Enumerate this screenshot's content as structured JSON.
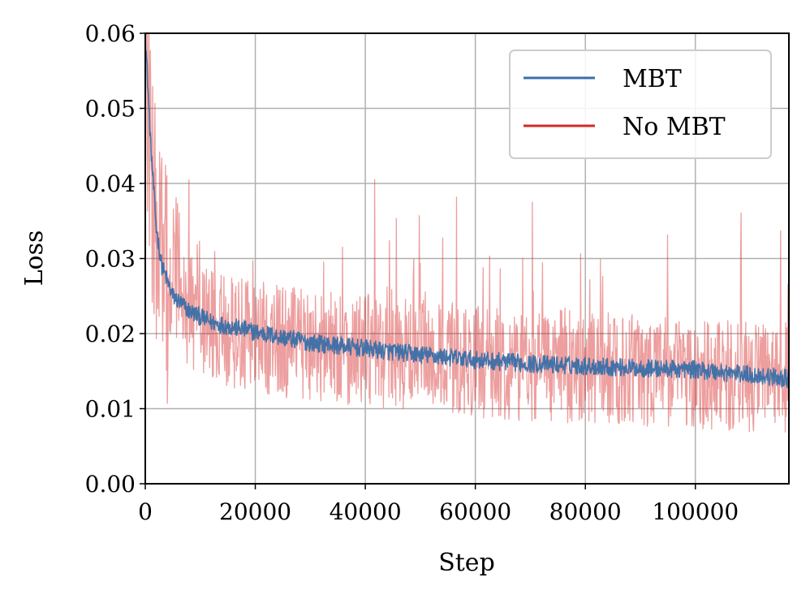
{
  "chart_data": {
    "type": "line",
    "title": "",
    "xlabel": "Step",
    "ylabel": "Loss",
    "xlim": [
      0,
      117000
    ],
    "ylim": [
      0,
      0.06
    ],
    "grid": true,
    "legend_position": "top-right",
    "xticks": [
      {
        "value": 0,
        "label": "0"
      },
      {
        "value": 20000,
        "label": "20000"
      },
      {
        "value": 40000,
        "label": "40000"
      },
      {
        "value": 60000,
        "label": "60000"
      },
      {
        "value": 80000,
        "label": "80000"
      },
      {
        "value": 100000,
        "label": "100000"
      }
    ],
    "yticks": [
      {
        "value": 0.0,
        "label": "0.00"
      },
      {
        "value": 0.01,
        "label": "0.01"
      },
      {
        "value": 0.02,
        "label": "0.02"
      },
      {
        "value": 0.03,
        "label": "0.03"
      },
      {
        "value": 0.04,
        "label": "0.04"
      },
      {
        "value": 0.05,
        "label": "0.05"
      },
      {
        "value": 0.06,
        "label": "0.06"
      }
    ],
    "series": [
      {
        "name": "MBT",
        "color": "#3a6fa8",
        "trend": {
          "x": [
            0,
            1000,
            2000,
            3000,
            5000,
            8000,
            12000,
            20000,
            30000,
            40000,
            50000,
            60000,
            70000,
            80000,
            90000,
            100000,
            110000,
            117000
          ],
          "y": [
            0.06,
            0.045,
            0.034,
            0.029,
            0.025,
            0.023,
            0.0215,
            0.0202,
            0.0188,
            0.018,
            0.0172,
            0.0165,
            0.016,
            0.0157,
            0.0154,
            0.0152,
            0.0145,
            0.014
          ]
        },
        "noise_amplitude": 0.0012
      },
      {
        "name": "No MBT",
        "color": "#d62728",
        "trend": {
          "x": [
            0,
            1000,
            2000,
            4000,
            7000,
            12000,
            20000,
            30000,
            40000,
            50000,
            60000,
            70000,
            80000,
            90000,
            100000,
            110000,
            117000
          ],
          "y": [
            0.06,
            0.042,
            0.033,
            0.026,
            0.0235,
            0.021,
            0.0195,
            0.0185,
            0.0178,
            0.017,
            0.0163,
            0.0158,
            0.0155,
            0.0152,
            0.0148,
            0.0142,
            0.0135
          ]
        },
        "noise_amplitude": 0.0075
      }
    ]
  }
}
